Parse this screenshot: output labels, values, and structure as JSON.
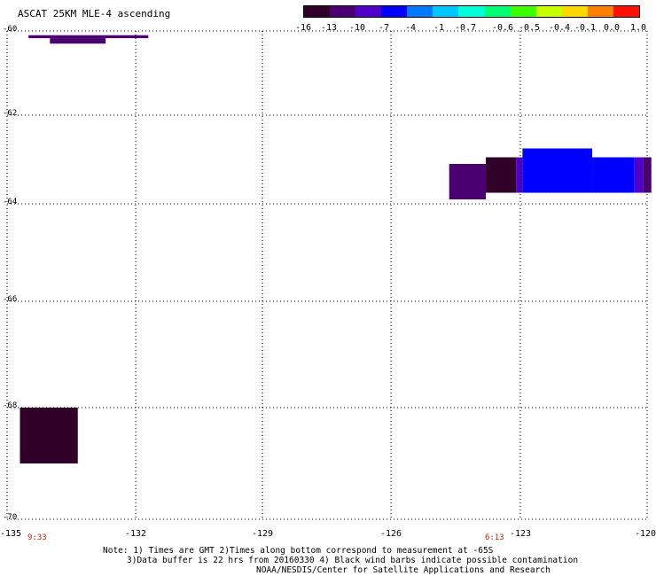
{
  "title": "ASCAT 25KM MLE-4 ascending",
  "colorbar": {
    "labels": [
      "-16",
      "-13",
      "-10",
      "-7",
      "-4",
      "-1",
      "-0.7",
      "-0.6",
      "-0.5",
      "-0.4",
      "-0.1",
      "0.0",
      "1.0"
    ],
    "colors": [
      "#300028",
      "#4a0070",
      "#5000c8",
      "#0000ff",
      "#0078ff",
      "#00c8ff",
      "#00ffd8",
      "#00ff70",
      "#3cff00",
      "#c8ff00",
      "#ffd800",
      "#ff8000",
      "#ff1000"
    ]
  },
  "axes": {
    "lat_ticks": [
      "-60",
      "-62",
      "-64",
      "-66",
      "-68",
      "-70"
    ],
    "lon_ticks": [
      "-135",
      "-132",
      "-129",
      "-126",
      "-123",
      "-120"
    ],
    "lat_range": [
      -70,
      -60
    ],
    "lon_range": [
      -135,
      -120
    ],
    "grid": "dotted"
  },
  "time_labels": [
    {
      "text": "9:33",
      "lon": -134.3
    },
    {
      "text": "6:13",
      "lon": -123.6
    }
  ],
  "swaths": [
    {
      "lon": [
        -134.5,
        -131.7
      ],
      "lat": [
        -60.17,
        -60.1
      ],
      "mle": -13
    },
    {
      "lon": [
        -134.0,
        -132.7
      ],
      "lat": [
        -60.3,
        -60.17
      ],
      "mle": -13
    },
    {
      "lon": [
        -134.7,
        -133.35
      ],
      "lat": [
        -69.0,
        -68.0
      ],
      "mle": -16
    },
    {
      "lon": [
        -124.65,
        -123.8
      ],
      "lat": [
        -63.9,
        -63.1
      ],
      "mle": -13
    },
    {
      "lon": [
        -123.8,
        -123.1
      ],
      "lat": [
        -63.75,
        -62.95
      ],
      "mle": -16
    },
    {
      "lon": [
        -123.1,
        -122.95
      ],
      "lat": [
        -63.75,
        -62.95
      ],
      "mle": -10
    },
    {
      "lon": [
        -122.95,
        -121.3
      ],
      "lat": [
        -63.75,
        -62.75
      ],
      "mle": -7
    },
    {
      "lon": [
        -121.3,
        -120.3
      ],
      "lat": [
        -63.75,
        -62.95
      ],
      "mle": -7
    },
    {
      "lon": [
        -120.3,
        -120.1
      ],
      "lat": [
        -63.75,
        -62.95
      ],
      "mle": -10
    },
    {
      "lon": [
        -120.1,
        -119.9
      ],
      "lat": [
        -63.75,
        -62.95
      ],
      "mle": -13
    }
  ],
  "notes": {
    "line1": "Note: 1) Times are GMT 2)Times along bottom correspond to measurement at -65S",
    "line2": "3)Data buffer is 22 hrs from 20160330 4) Black wind barbs indicate possible contamination",
    "line3": "NOAA/NESDIS/Center for Satellite Applications and Research"
  }
}
